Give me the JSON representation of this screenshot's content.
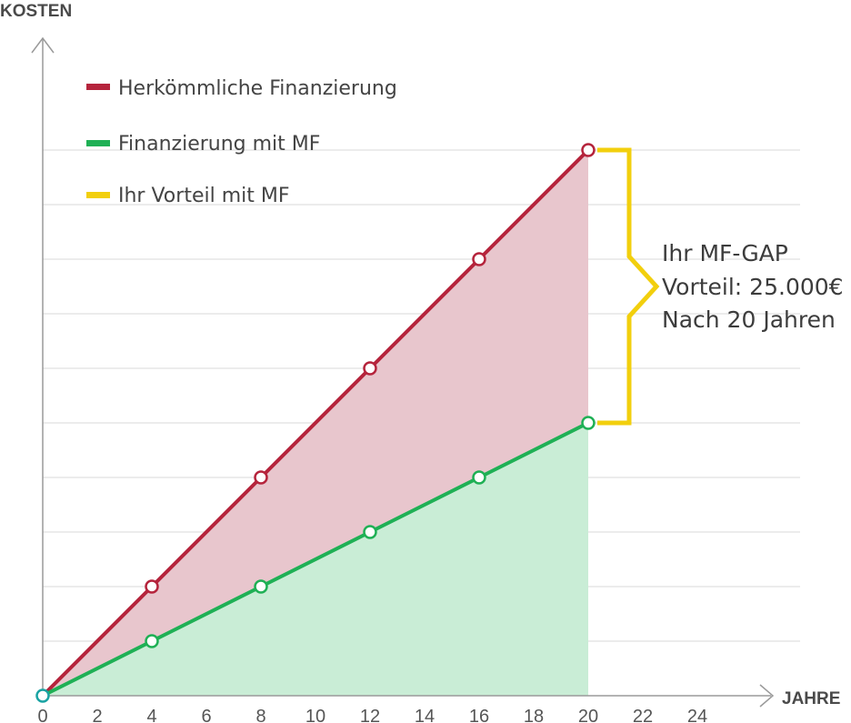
{
  "chart_data": {
    "type": "area",
    "ylabel": "KOSTEN",
    "xlabel": "JAHRE",
    "x_ticks": [
      0,
      2,
      4,
      6,
      8,
      10,
      12,
      14,
      16,
      18,
      20,
      22,
      24
    ],
    "xlim": [
      0,
      24
    ],
    "grid": true,
    "legend_position": "top-left",
    "series": [
      {
        "name": "Herkömmliche Finanzierung",
        "color": "#b5243c",
        "fill": "#e8c6cd",
        "x": [
          0,
          4,
          8,
          12,
          16,
          20
        ],
        "y": [
          0,
          2,
          4,
          6,
          8,
          10
        ]
      },
      {
        "name": "Finanzierung mit MF",
        "color": "#1fb055",
        "fill": "#c9edd6",
        "x": [
          0,
          4,
          8,
          12,
          16,
          20
        ],
        "y": [
          0,
          1,
          2,
          3,
          4,
          5
        ]
      }
    ],
    "gap_legend": {
      "name": "Ihr Vorteil mit MF",
      "color": "#f2cf0d"
    },
    "annotation": {
      "lines": [
        "Ihr MF-GAP",
        "Vorteil: 25.000€",
        "Nach 20 Jahren"
      ],
      "x": 20,
      "y_from": 5,
      "y_to": 10
    }
  }
}
